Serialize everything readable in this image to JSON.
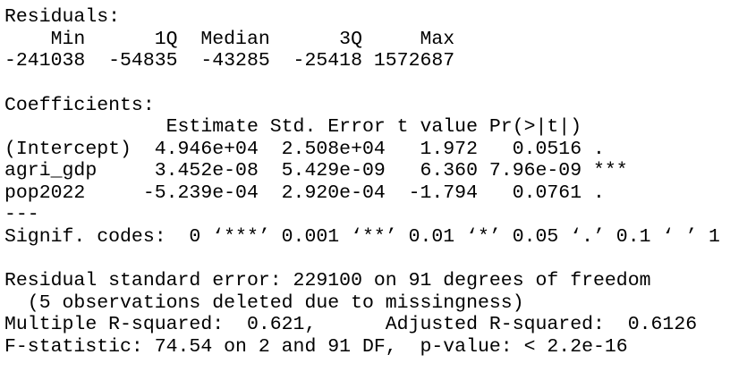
{
  "blocks": [
    [
      "Residuals:",
      "    Min      1Q  Median      3Q     Max ",
      "-241038  -54835  -43285  -25418 1572687 "
    ],
    [
      "Coefficients:",
      "              Estimate Std. Error t value Pr(>|t|)    ",
      "(Intercept)  4.946e+04  2.508e+04   1.972   0.0516 .  ",
      "agri_gdp     3.452e-08  5.429e-09   6.360 7.96e-09 ***",
      "pop2022     -5.239e-04  2.920e-04  -1.794   0.0761 .  ",
      "---",
      "Signif. codes:  0 ‘***’ 0.001 ‘**’ 0.01 ‘*’ 0.05 ‘.’ 0.1 ‘ ’ 1"
    ],
    [
      "Residual standard error: 229100 on 91 degrees of freedom",
      "  (5 observations deleted due to missingness)",
      "Multiple R-squared:  0.621,      Adjusted R-squared:  0.6126 ",
      "F-statistic: 74.54 on 2 and 91 DF,  p-value: < 2.2e-16"
    ]
  ]
}
